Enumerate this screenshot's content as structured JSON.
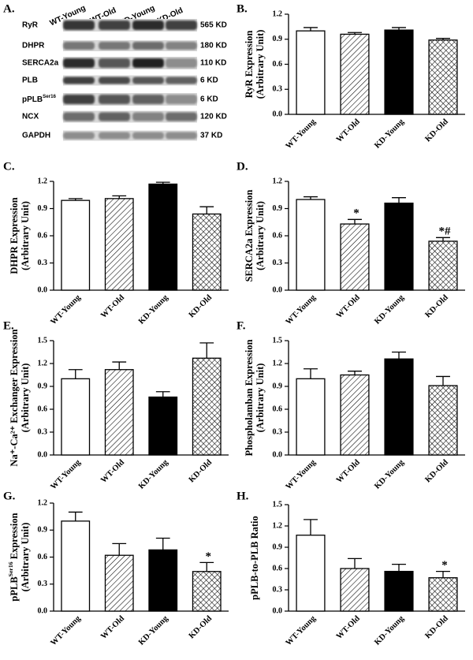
{
  "blot": {
    "panel": "A.",
    "lanes": [
      "WT-Young",
      "WT-Old",
      "KD-Young",
      "KD-Old"
    ],
    "rows": [
      {
        "protein": "RyR",
        "size": "565 KD"
      },
      {
        "protein": "DHPR",
        "size": "180 KD"
      },
      {
        "protein": "SERCA2a",
        "size": "110 KD"
      },
      {
        "protein": "PLB",
        "size": "6 KD"
      },
      {
        "protein": [
          "pPLB",
          "Ser16"
        ],
        "size": "6 KD"
      },
      {
        "protein": "NCX",
        "size": "120 KD"
      },
      {
        "protein": "GAPDH",
        "size": "37 KD"
      }
    ]
  },
  "chart_data": [
    {
      "type": "bar",
      "panel": "B.",
      "y_label": [
        "RyR Expression",
        "(Arbitrary Unit)"
      ],
      "categories": [
        "WT-Young",
        "WT-Old",
        "KD-Young",
        "KD-Old"
      ],
      "values": [
        1.0,
        0.96,
        1.01,
        0.89
      ],
      "errors": [
        0.04,
        0.02,
        0.03,
        0.02
      ],
      "bar_fills": [
        "#ffffff",
        "url(#hatch)",
        "#000000",
        "url(#crosshatch)"
      ],
      "ylim": [
        0,
        1.2
      ],
      "yticks": [
        {
          "value": 0,
          "label": "0.0"
        },
        0.3,
        0.6,
        0.9,
        1.2
      ]
    },
    {
      "type": "bar",
      "panel": "C.",
      "y_label": [
        "DHPR Expression",
        "(Arbitrary Unit)"
      ],
      "categories": [
        "WT-Young",
        "WT-Old",
        "KD-Young",
        "KD-Old"
      ],
      "values": [
        0.99,
        1.01,
        1.17,
        0.84
      ],
      "errors": [
        0.02,
        0.03,
        0.02,
        0.08
      ],
      "bar_fills": [
        "#ffffff",
        "url(#hatch)",
        "#000000",
        "url(#crosshatch)"
      ],
      "ylim": [
        0,
        1.2
      ],
      "yticks": [
        {
          "value": 0,
          "label": "0.0"
        },
        0.3,
        0.6,
        0.9,
        1.2
      ]
    },
    {
      "type": "bar",
      "panel": "D.",
      "y_label": [
        "SERCA2a Expression",
        "(Arbitrary Unit)"
      ],
      "categories": [
        "WT-Young",
        "WT-Old",
        "KD-Young",
        "KD-Old"
      ],
      "values": [
        1.0,
        0.73,
        0.96,
        0.54
      ],
      "errors": [
        0.03,
        0.05,
        0.06,
        0.04
      ],
      "annotations": [
        null,
        "*",
        null,
        "*#"
      ],
      "bar_fills": [
        "#ffffff",
        "url(#hatch)",
        "#000000",
        "url(#crosshatch)"
      ],
      "ylim": [
        0,
        1.2
      ],
      "yticks": [
        {
          "value": 0,
          "label": "0.0"
        },
        0.3,
        0.6,
        0.9,
        1.2
      ]
    },
    {
      "type": "bar",
      "panel": "E.",
      "y_label": [
        "Na⁺-Ca²⁺ Exchanger Expression",
        "(Arbitrary Unit)"
      ],
      "categories": [
        "WT-Young",
        "WT-Old",
        "KD-Young",
        "KD-Old"
      ],
      "values": [
        1.0,
        1.12,
        0.76,
        1.27
      ],
      "errors": [
        0.12,
        0.1,
        0.07,
        0.2
      ],
      "bar_fills": [
        "#ffffff",
        "url(#hatch)",
        "#000000",
        "url(#crosshatch)"
      ],
      "ylim": [
        0,
        1.5
      ],
      "yticks": [
        {
          "value": 0,
          "label": "0.0"
        },
        0.3,
        0.6,
        0.9,
        1.2,
        1.5
      ]
    },
    {
      "type": "bar",
      "panel": "F.",
      "y_label": [
        "Phospholamban Expression",
        "(Arbitrary Unit)"
      ],
      "categories": [
        "WT-Young",
        "WT-Old",
        "KD-Young",
        "KD-Old"
      ],
      "values": [
        1.0,
        1.05,
        1.26,
        0.91
      ],
      "errors": [
        0.13,
        0.05,
        0.09,
        0.12
      ],
      "bar_fills": [
        "#ffffff",
        "url(#hatch)",
        "#000000",
        "url(#crosshatch)"
      ],
      "ylim": [
        0,
        1.5
      ],
      "yticks": [
        {
          "value": 0,
          "label": "0.0"
        },
        0.3,
        0.6,
        0.9,
        1.2,
        1.5
      ]
    },
    {
      "type": "bar",
      "panel": "G.",
      "y_label": [
        [
          "pPLB",
          "Ser16",
          " Expression"
        ],
        "(Arbitrary Unit)"
      ],
      "categories": [
        "WT-Young",
        "WT-Old",
        "KD-Young",
        "KD-Old"
      ],
      "values": [
        1.0,
        0.62,
        0.68,
        0.44
      ],
      "errors": [
        0.1,
        0.13,
        0.13,
        0.1
      ],
      "annotations": [
        null,
        null,
        null,
        "*"
      ],
      "bar_fills": [
        "#ffffff",
        "url(#hatch)",
        "#000000",
        "url(#crosshatch)"
      ],
      "ylim": [
        0,
        1.2
      ],
      "yticks": [
        {
          "value": 0,
          "label": "0.0"
        },
        0.3,
        0.6,
        0.9,
        1.2
      ]
    },
    {
      "type": "bar",
      "panel": "H.",
      "y_label": [
        "pPLB-to-PLB Ratio"
      ],
      "categories": [
        "WT-Young",
        "WT-Old",
        "KD-Young",
        "KD-Old"
      ],
      "values": [
        1.07,
        0.6,
        0.56,
        0.47
      ],
      "errors": [
        0.22,
        0.14,
        0.1,
        0.09
      ],
      "annotations": [
        null,
        null,
        null,
        "*"
      ],
      "bar_fills": [
        "#ffffff",
        "url(#hatch)",
        "#000000",
        "url(#crosshatch)"
      ],
      "ylim": [
        0,
        1.5
      ],
      "yticks": [
        {
          "value": 0,
          "label": "0.0"
        },
        0.3,
        0.6,
        0.9,
        1.2,
        1.5
      ]
    }
  ]
}
